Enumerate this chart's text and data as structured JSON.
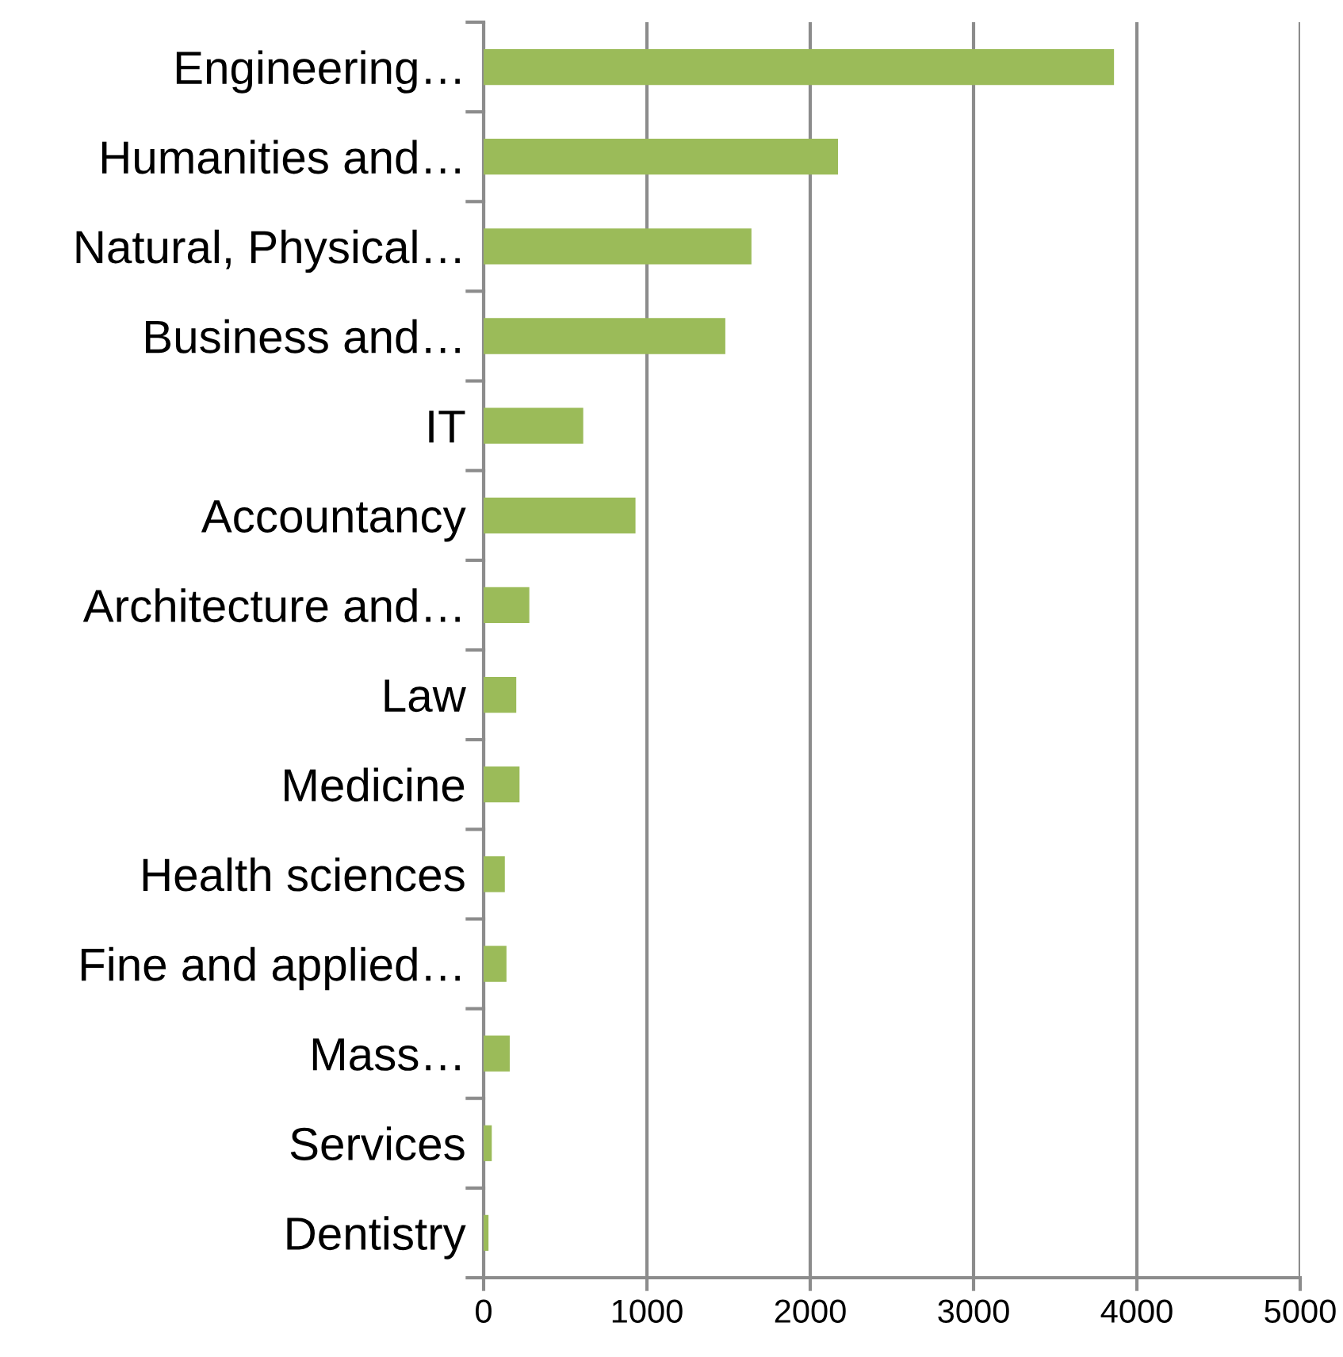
{
  "chart_data": {
    "type": "bar",
    "orientation": "horizontal",
    "categories": [
      "Engineering…",
      "Humanities and…",
      "Natural, Physical…",
      "Business and…",
      "IT",
      "Accountancy",
      "Architecture and…",
      "Law",
      "Medicine",
      "Health sciences",
      "Fine and applied…",
      "Mass…",
      "Services",
      "Dentistry"
    ],
    "values": [
      3860,
      2170,
      1640,
      1480,
      610,
      930,
      280,
      200,
      220,
      130,
      140,
      160,
      50,
      30
    ],
    "color": "#9bbb59",
    "xlim": [
      0,
      5000
    ],
    "xticks": [
      0,
      1000,
      2000,
      3000,
      4000,
      5000
    ],
    "grid": "x"
  }
}
